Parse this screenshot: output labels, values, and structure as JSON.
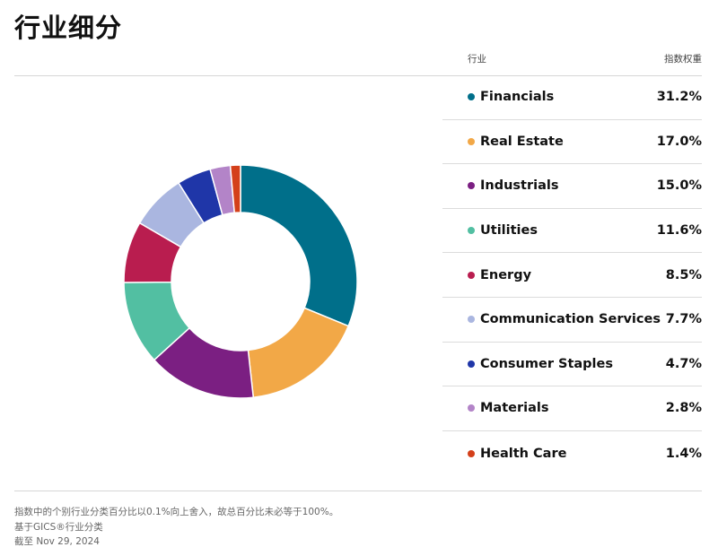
{
  "title": "行业细分",
  "legend_header": {
    "left": "行业",
    "right": "指数权重"
  },
  "chart_data": {
    "type": "pie",
    "donut": true,
    "slices": [
      {
        "label": "Financials",
        "value": 31.2,
        "value_text": "31.2%",
        "color": "#006f8a"
      },
      {
        "label": "Real Estate",
        "value": 17.0,
        "value_text": "17.0%",
        "color": "#f2a847"
      },
      {
        "label": "Industrials",
        "value": 15.0,
        "value_text": "15.0%",
        "color": "#7b1f82"
      },
      {
        "label": "Utilities",
        "value": 11.6,
        "value_text": "11.6%",
        "color": "#52bfa2"
      },
      {
        "label": "Energy",
        "value": 8.5,
        "value_text": "8.5%",
        "color": "#b91d4f"
      },
      {
        "label": "Communication Services",
        "value": 7.7,
        "value_text": "7.7%",
        "color": "#aab6e0"
      },
      {
        "label": "Consumer Staples",
        "value": 4.7,
        "value_text": "4.7%",
        "color": "#1f36a8"
      },
      {
        "label": "Materials",
        "value": 2.8,
        "value_text": "2.8%",
        "color": "#b384c8"
      },
      {
        "label": "Health Care",
        "value": 1.4,
        "value_text": "1.4%",
        "color": "#d4401a"
      }
    ]
  },
  "footnotes": [
    "指数中的个别行业分类百分比以0.1%向上舍入，故总百分比未必等于100%。",
    "基于GICS®行业分类",
    "截至 Nov 29, 2024"
  ]
}
